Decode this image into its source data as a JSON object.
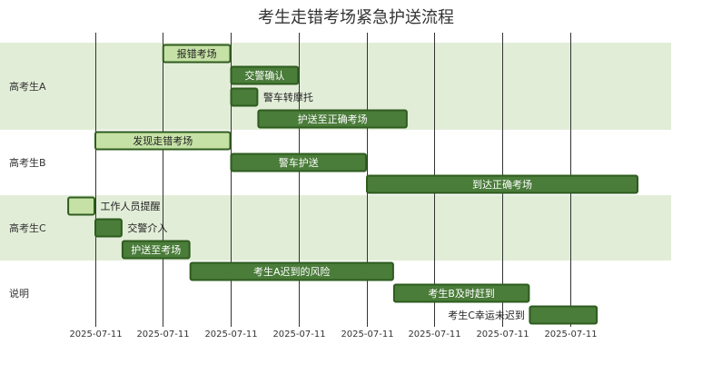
{
  "chart_data": {
    "type": "gantt",
    "title": "考生走错考场紧急护送流程",
    "axis": {
      "tick_labels": [
        "2025-07-11",
        "2025-07-11",
        "2025-07-11",
        "2025-07-11",
        "2025-07-11",
        "2025-07-11",
        "2025-07-11",
        "2025-07-11"
      ],
      "tick_minutes": [
        0,
        5,
        10,
        15,
        20,
        25,
        30,
        35
      ],
      "domain_minutes": [
        -2,
        35
      ],
      "unit": "minutes from 2025-07-11 start"
    },
    "sections": [
      {
        "name": "高考生A",
        "tasks": [
          {
            "label": "报错考场",
            "start": 5,
            "end": 10,
            "status": "done"
          },
          {
            "label": "交警确认",
            "start": 10,
            "end": 15,
            "status": "active"
          },
          {
            "label": "警车转摩托",
            "start": 10,
            "end": 12,
            "status": "active"
          },
          {
            "label": "护送至正确考场",
            "start": 12,
            "end": 23,
            "status": "active"
          }
        ]
      },
      {
        "name": "高考生B",
        "tasks": [
          {
            "label": "发现走错考场",
            "start": 0,
            "end": 10,
            "status": "done"
          },
          {
            "label": "警车护送",
            "start": 10,
            "end": 20,
            "status": "active"
          },
          {
            "label": "到达正确考场",
            "start": 20,
            "end": 40,
            "status": "active"
          }
        ]
      },
      {
        "name": "高考生C",
        "tasks": [
          {
            "label": "工作人员提醒",
            "start": -2,
            "end": 0,
            "status": "done"
          },
          {
            "label": "交警介入",
            "start": 0,
            "end": 2,
            "status": "active"
          },
          {
            "label": "护送至考场",
            "start": 2,
            "end": 7,
            "status": "active"
          }
        ]
      },
      {
        "name": "说明",
        "tasks": [
          {
            "label": "考生A迟到的风险",
            "start": 7,
            "end": 22,
            "status": "active"
          },
          {
            "label": "考生B及时赶到",
            "start": 22,
            "end": 32,
            "status": "active"
          },
          {
            "label": "考生C幸运未迟到",
            "start": 32,
            "end": 37,
            "status": "active"
          }
        ]
      }
    ],
    "colors": {
      "done_fill": "#c5e1a5",
      "active_fill": "#4a7c3a",
      "bar_stroke": "#2e5c1e",
      "section_band": "#e2edd8",
      "grid": "#333333"
    }
  }
}
